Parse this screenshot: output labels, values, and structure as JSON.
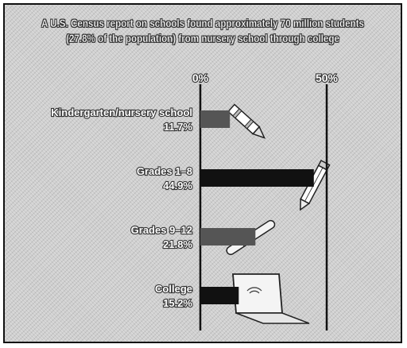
{
  "chart_data": {
    "type": "bar",
    "title_lines": [
      "A U.S. Census report on schools found approximately 70 million students",
      "(27.8% of the population) from nursery school through college"
    ],
    "axis": {
      "tick_labels": [
        "0%",
        "50%"
      ],
      "ticks": [
        0,
        50
      ],
      "xlim": [
        0,
        50
      ]
    },
    "categories": [
      "Kindergarten/nursery school",
      "Grades 1–8",
      "Grades 9–12",
      "College"
    ],
    "value_labels": [
      "11.7%",
      "44.9%",
      "21.8%",
      "15.2%"
    ],
    "values": [
      11.7,
      44.9,
      21.8,
      15.2
    ],
    "grid": false,
    "colors": {
      "bars": [
        "#555555",
        "#111111",
        "#555555",
        "#111111"
      ],
      "text": "#ffffff",
      "axis": "#111111"
    },
    "illustrations": [
      "crayon-icon",
      "pencil-icon",
      "pen-icon",
      "laptop-icon"
    ]
  }
}
